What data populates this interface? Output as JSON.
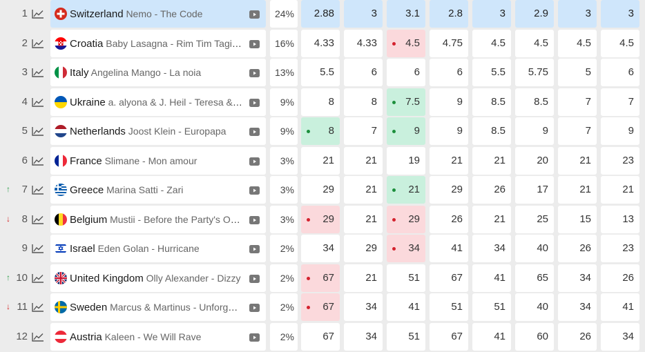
{
  "rows": [
    {
      "rank": "1",
      "trend": "",
      "country": "Switzerland",
      "song": "Nemo - The Code",
      "flag": "ch",
      "prob": "24%",
      "highlight": true,
      "odds": [
        {
          "v": "2.88"
        },
        {
          "v": "3"
        },
        {
          "v": "3.1"
        },
        {
          "v": "2.8"
        },
        {
          "v": "3"
        },
        {
          "v": "2.9"
        },
        {
          "v": "3"
        },
        {
          "v": "3"
        }
      ]
    },
    {
      "rank": "2",
      "trend": "",
      "country": "Croatia",
      "song": "Baby Lasagna - Rim Tim Tagi Dim",
      "flag": "hr",
      "prob": "16%",
      "odds": [
        {
          "v": "4.33"
        },
        {
          "v": "4.33"
        },
        {
          "v": "4.5",
          "m": "worst"
        },
        {
          "v": "4.75"
        },
        {
          "v": "4.5"
        },
        {
          "v": "4.5"
        },
        {
          "v": "4.5"
        },
        {
          "v": "4.5"
        }
      ]
    },
    {
      "rank": "3",
      "trend": "",
      "country": "Italy",
      "song": "Angelina Mango - La noia",
      "flag": "it",
      "prob": "13%",
      "odds": [
        {
          "v": "5.5"
        },
        {
          "v": "6"
        },
        {
          "v": "6"
        },
        {
          "v": "6"
        },
        {
          "v": "5.5"
        },
        {
          "v": "5.75"
        },
        {
          "v": "5"
        },
        {
          "v": "6"
        }
      ]
    },
    {
      "rank": "4",
      "trend": "",
      "country": "Ukraine",
      "song": "a. alyona & J. Heil - Teresa & Maria",
      "flag": "ua",
      "prob": "9%",
      "odds": [
        {
          "v": "8"
        },
        {
          "v": "8"
        },
        {
          "v": "7.5",
          "m": "best"
        },
        {
          "v": "9"
        },
        {
          "v": "8.5"
        },
        {
          "v": "8.5"
        },
        {
          "v": "7"
        },
        {
          "v": "7"
        }
      ]
    },
    {
      "rank": "5",
      "trend": "",
      "country": "Netherlands",
      "song": "Joost Klein - Europapa",
      "flag": "nl",
      "prob": "9%",
      "odds": [
        {
          "v": "8",
          "m": "best"
        },
        {
          "v": "7"
        },
        {
          "v": "9",
          "m": "best"
        },
        {
          "v": "9"
        },
        {
          "v": "8.5"
        },
        {
          "v": "9"
        },
        {
          "v": "7"
        },
        {
          "v": "9"
        }
      ]
    },
    {
      "rank": "6",
      "trend": "",
      "country": "France",
      "song": "Slimane - Mon amour",
      "flag": "fr",
      "prob": "3%",
      "odds": [
        {
          "v": "21"
        },
        {
          "v": "21"
        },
        {
          "v": "19"
        },
        {
          "v": "21"
        },
        {
          "v": "21"
        },
        {
          "v": "20"
        },
        {
          "v": "21"
        },
        {
          "v": "23"
        }
      ]
    },
    {
      "rank": "7",
      "trend": "up",
      "country": "Greece",
      "song": "Marina Satti - Zari",
      "flag": "gr",
      "prob": "3%",
      "odds": [
        {
          "v": "29"
        },
        {
          "v": "21"
        },
        {
          "v": "21",
          "m": "best"
        },
        {
          "v": "29"
        },
        {
          "v": "26"
        },
        {
          "v": "17"
        },
        {
          "v": "21"
        },
        {
          "v": "21"
        }
      ]
    },
    {
      "rank": "8",
      "trend": "down",
      "country": "Belgium",
      "song": "Mustii - Before the Party's Over",
      "flag": "be",
      "prob": "3%",
      "odds": [
        {
          "v": "29",
          "m": "worst"
        },
        {
          "v": "21"
        },
        {
          "v": "29",
          "m": "worst"
        },
        {
          "v": "26"
        },
        {
          "v": "21"
        },
        {
          "v": "25"
        },
        {
          "v": "15"
        },
        {
          "v": "13"
        }
      ]
    },
    {
      "rank": "9",
      "trend": "",
      "country": "Israel",
      "song": "Eden Golan - Hurricane",
      "flag": "il",
      "prob": "2%",
      "odds": [
        {
          "v": "34"
        },
        {
          "v": "29"
        },
        {
          "v": "34",
          "m": "worst"
        },
        {
          "v": "41"
        },
        {
          "v": "34"
        },
        {
          "v": "40"
        },
        {
          "v": "26"
        },
        {
          "v": "23"
        }
      ]
    },
    {
      "rank": "10",
      "trend": "up",
      "country": "United Kingdom",
      "song": "Olly Alexander - Dizzy",
      "flag": "gb",
      "prob": "2%",
      "odds": [
        {
          "v": "67",
          "m": "worst"
        },
        {
          "v": "21"
        },
        {
          "v": "51"
        },
        {
          "v": "67"
        },
        {
          "v": "41"
        },
        {
          "v": "65"
        },
        {
          "v": "34"
        },
        {
          "v": "26"
        }
      ]
    },
    {
      "rank": "11",
      "trend": "down",
      "country": "Sweden",
      "song": "Marcus & Martinus - Unforgettable",
      "flag": "se",
      "prob": "2%",
      "odds": [
        {
          "v": "67",
          "m": "worst"
        },
        {
          "v": "34"
        },
        {
          "v": "41"
        },
        {
          "v": "51"
        },
        {
          "v": "51"
        },
        {
          "v": "40"
        },
        {
          "v": "34"
        },
        {
          "v": "41"
        }
      ]
    },
    {
      "rank": "12",
      "trend": "",
      "country": "Austria",
      "song": "Kaleen - We Will Rave",
      "flag": "at",
      "prob": "2%",
      "odds": [
        {
          "v": "67"
        },
        {
          "v": "34"
        },
        {
          "v": "51"
        },
        {
          "v": "67"
        },
        {
          "v": "41"
        },
        {
          "v": "60"
        },
        {
          "v": "26"
        },
        {
          "v": "34"
        }
      ]
    }
  ],
  "icons": {
    "row_chart": "trend-chart-icon",
    "video": "youtube-play-icon",
    "trend_up": "arrow-up-icon",
    "trend_down": "arrow-down-icon"
  },
  "colors": {
    "highlight": "#cfe6fb",
    "best": "#c9f0dd",
    "worst": "#fbd9dc",
    "best_dot": "#1c8f3c",
    "worst_dot": "#d4222e",
    "trend_up": "#2e9e4a",
    "trend_down": "#d42020"
  }
}
